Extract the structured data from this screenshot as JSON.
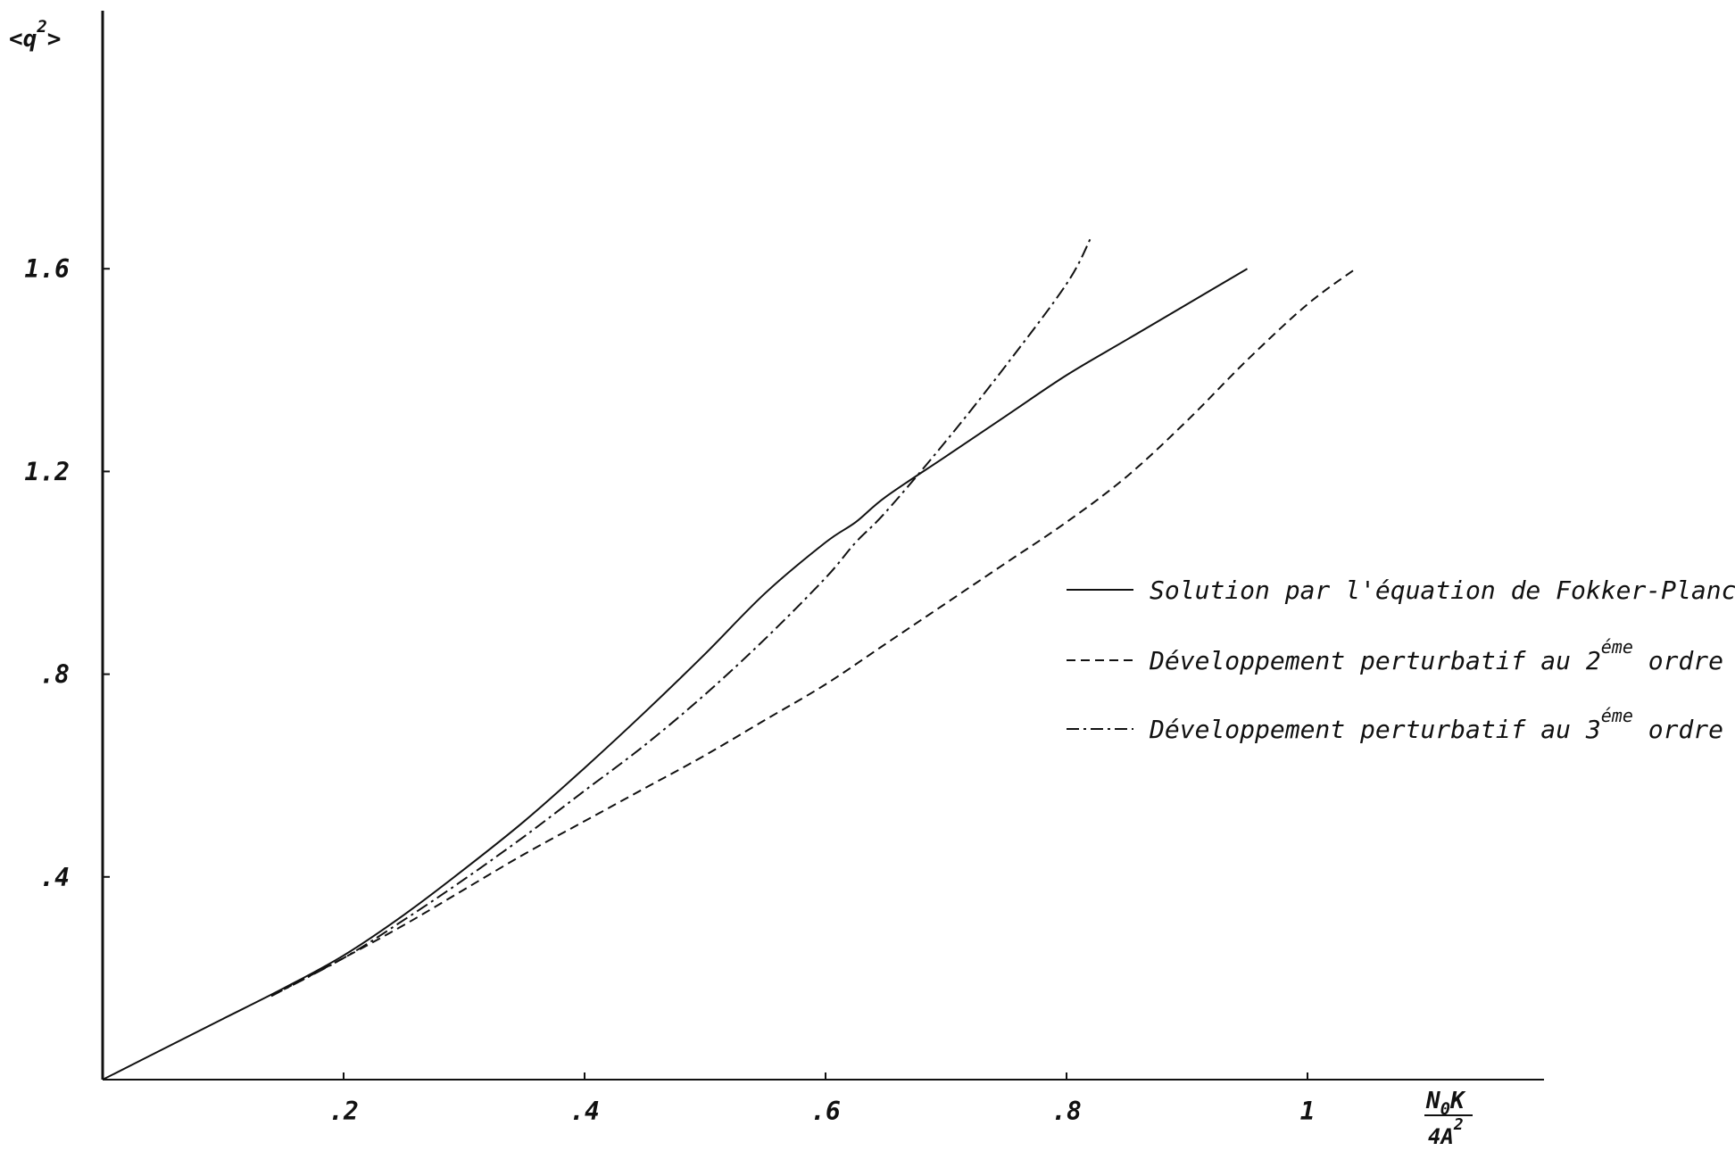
{
  "chart_data": {
    "type": "line",
    "title": "",
    "xlabel": {
      "num_main": "N",
      "num_sub": "0",
      "num_tail": "K",
      "den_main": "4A",
      "den_sup": "2"
    },
    "ylabel": {
      "main": "<q",
      "sup": "2",
      "tail": ">"
    },
    "xlim": [
      0,
      1.19
    ],
    "ylim": [
      0,
      1.68
    ],
    "xticks": [
      0.2,
      0.4,
      0.6,
      0.8,
      1.0
    ],
    "xtick_labels": [
      ".2",
      ".4",
      ".6",
      ".8",
      "1"
    ],
    "yticks": [
      0.4,
      0.8,
      1.2,
      1.6
    ],
    "ytick_labels": [
      ".4",
      ".8",
      "1.2",
      "1.6"
    ],
    "grid": false,
    "legend_position": "right",
    "series": [
      {
        "name": {
          "text": "Solution par l'équation de Fokker-Planck"
        },
        "style": "solid",
        "x": [
          0,
          0.05,
          0.1,
          0.15,
          0.2,
          0.25,
          0.3,
          0.35,
          0.4,
          0.45,
          0.5,
          0.55,
          0.6,
          0.625,
          0.65,
          0.7,
          0.75,
          0.8,
          0.85,
          0.9,
          0.95
        ],
        "y": [
          0,
          0.06,
          0.12,
          0.18,
          0.245,
          0.325,
          0.415,
          0.51,
          0.615,
          0.725,
          0.84,
          0.96,
          1.06,
          1.1,
          1.15,
          1.23,
          1.31,
          1.39,
          1.46,
          1.53,
          1.6
        ]
      },
      {
        "name": {
          "pre": "Développement perturbatif au ",
          "num": "2",
          "sup": "éme",
          "post": " ordre"
        },
        "style": "dashed",
        "x": [
          0.14,
          0.2,
          0.25,
          0.3,
          0.35,
          0.4,
          0.45,
          0.5,
          0.55,
          0.6,
          0.65,
          0.7,
          0.75,
          0.8,
          0.85,
          0.9,
          0.95,
          1.0,
          1.04
        ],
        "y": [
          0.165,
          0.24,
          0.305,
          0.375,
          0.445,
          0.51,
          0.575,
          0.64,
          0.71,
          0.78,
          0.86,
          0.94,
          1.02,
          1.1,
          1.19,
          1.3,
          1.42,
          1.53,
          1.6
        ]
      },
      {
        "name": {
          "pre": "Développement perturbatif au ",
          "num": "3",
          "sup": "éme",
          "post": " ordre"
        },
        "style": "dashdot",
        "x": [
          0.14,
          0.2,
          0.25,
          0.3,
          0.35,
          0.4,
          0.45,
          0.5,
          0.55,
          0.6,
          0.625,
          0.65,
          0.7,
          0.75,
          0.8,
          0.82
        ],
        "y": [
          0.165,
          0.24,
          0.315,
          0.395,
          0.48,
          0.57,
          0.66,
          0.76,
          0.87,
          0.99,
          1.06,
          1.12,
          1.26,
          1.41,
          1.57,
          1.66
        ]
      }
    ]
  }
}
